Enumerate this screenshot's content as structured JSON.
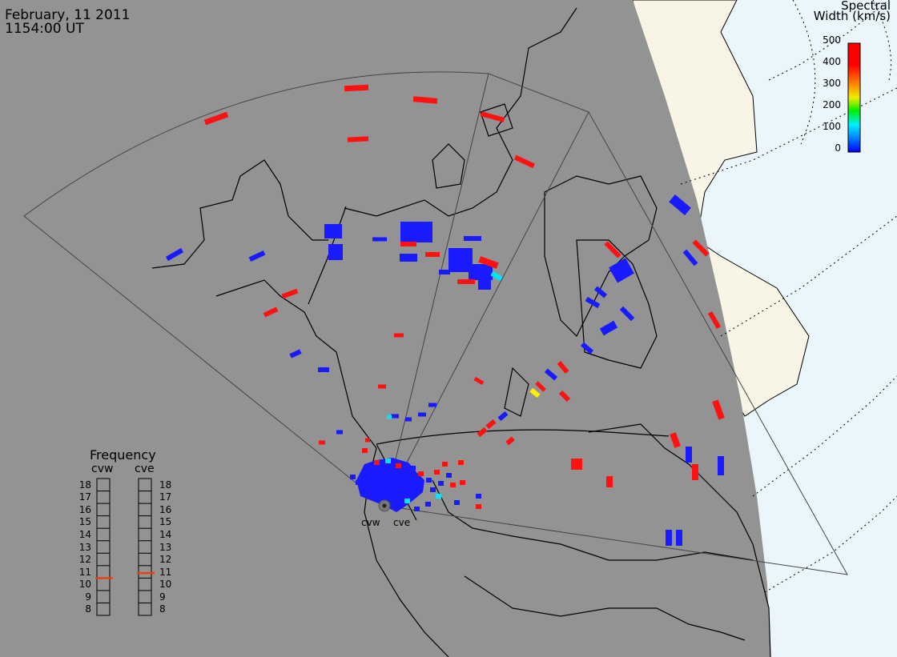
{
  "header": {
    "date": "February, 11 2011",
    "time": "1154:00 UT"
  },
  "colorbar": {
    "title_line1": "Spectral",
    "title_line2": "Width (km/s)",
    "ticks": [
      "500",
      "400",
      "300",
      "200",
      "100",
      "0"
    ],
    "gradient": [
      "#ff0000",
      "#ff8800",
      "#ffff00",
      "#00ee00",
      "#00ffff",
      "#0066ff",
      "#0000ff"
    ]
  },
  "frequency_panel": {
    "title": "Frequency",
    "radars": [
      {
        "code": "cvw",
        "value_mhz": 10.5
      },
      {
        "code": "cve",
        "value_mhz": 10.9
      }
    ],
    "scale": [
      "18",
      "17",
      "16",
      "15",
      "14",
      "13",
      "12",
      "11",
      "10",
      "9",
      "8"
    ]
  },
  "sites": [
    {
      "code": "cvw"
    },
    {
      "code": "cve"
    }
  ],
  "colors": {
    "night": "#939393",
    "day_ocean": "#eaf6fc",
    "day_land": "#f8f5e6",
    "low_width": "#1a1aff",
    "high_width": "#ff1111",
    "freq_marker": "#e8410f"
  }
}
